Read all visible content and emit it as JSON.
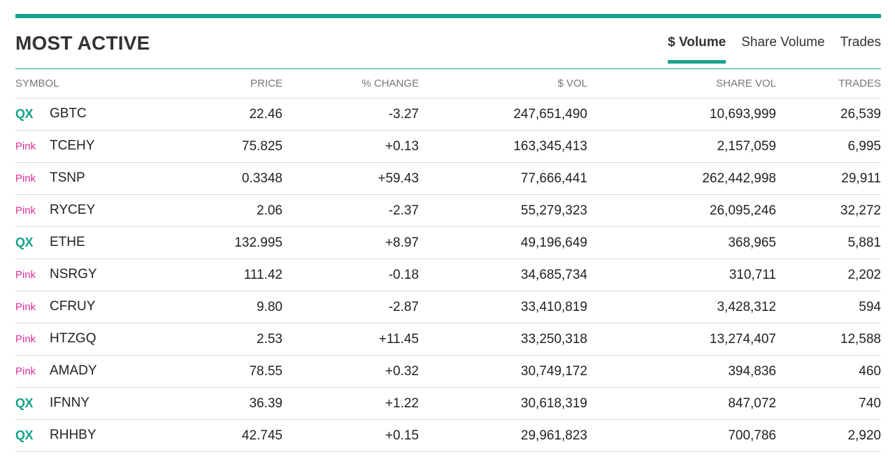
{
  "title": "MOST ACTIVE",
  "tabs": [
    {
      "label": "$ Volume",
      "active": true
    },
    {
      "label": "Share Volume",
      "active": false
    },
    {
      "label": "Trades",
      "active": false
    }
  ],
  "columns": {
    "symbol": "SYMBOL",
    "price": "PRICE",
    "change": "% CHANGE",
    "dollar_vol": "$ VOL",
    "share_vol": "SHARE VOL",
    "trades": "TRADES"
  },
  "colors": {
    "accent": "#14a38b",
    "pink_market": "#e0309a"
  },
  "rows": [
    {
      "market": "QX",
      "symbol": "GBTC",
      "price": "22.46",
      "change": "-3.27",
      "dollar_vol": "247,651,490",
      "share_vol": "10,693,999",
      "trades": "26,539"
    },
    {
      "market": "Pink",
      "symbol": "TCEHY",
      "price": "75.825",
      "change": "+0.13",
      "dollar_vol": "163,345,413",
      "share_vol": "2,157,059",
      "trades": "6,995"
    },
    {
      "market": "Pink",
      "symbol": "TSNP",
      "price": "0.3348",
      "change": "+59.43",
      "dollar_vol": "77,666,441",
      "share_vol": "262,442,998",
      "trades": "29,911"
    },
    {
      "market": "Pink",
      "symbol": "RYCEY",
      "price": "2.06",
      "change": "-2.37",
      "dollar_vol": "55,279,323",
      "share_vol": "26,095,246",
      "trades": "32,272"
    },
    {
      "market": "QX",
      "symbol": "ETHE",
      "price": "132.995",
      "change": "+8.97",
      "dollar_vol": "49,196,649",
      "share_vol": "368,965",
      "trades": "5,881"
    },
    {
      "market": "Pink",
      "symbol": "NSRGY",
      "price": "111.42",
      "change": "-0.18",
      "dollar_vol": "34,685,734",
      "share_vol": "310,711",
      "trades": "2,202"
    },
    {
      "market": "Pink",
      "symbol": "CFRUY",
      "price": "9.80",
      "change": "-2.87",
      "dollar_vol": "33,410,819",
      "share_vol": "3,428,312",
      "trades": "594"
    },
    {
      "market": "Pink",
      "symbol": "HTZGQ",
      "price": "2.53",
      "change": "+11.45",
      "dollar_vol": "33,250,318",
      "share_vol": "13,274,407",
      "trades": "12,588"
    },
    {
      "market": "Pink",
      "symbol": "AMADY",
      "price": "78.55",
      "change": "+0.32",
      "dollar_vol": "30,749,172",
      "share_vol": "394,836",
      "trades": "460"
    },
    {
      "market": "QX",
      "symbol": "IFNNY",
      "price": "36.39",
      "change": "+1.22",
      "dollar_vol": "30,618,319",
      "share_vol": "847,072",
      "trades": "740"
    },
    {
      "market": "QX",
      "symbol": "RHHBY",
      "price": "42.745",
      "change": "+0.15",
      "dollar_vol": "29,961,823",
      "share_vol": "700,786",
      "trades": "2,920"
    }
  ]
}
